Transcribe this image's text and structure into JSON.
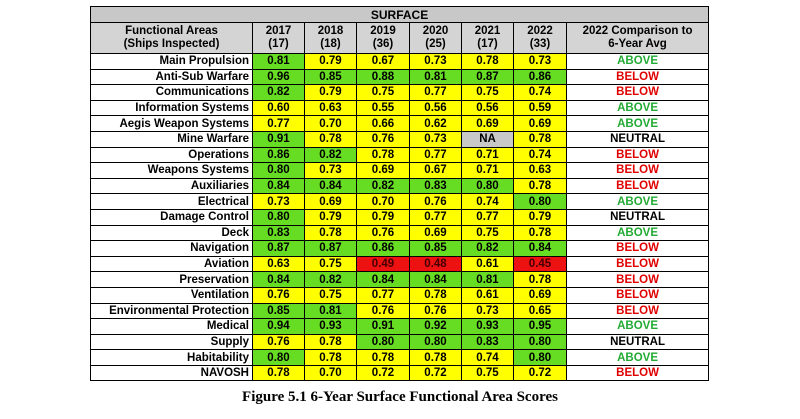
{
  "table": {
    "title": "SURFACE",
    "headers": [
      {
        "top": "Functional Areas",
        "bottom": "(Ships Inspected)"
      },
      {
        "top": "2017",
        "bottom": "(17)"
      },
      {
        "top": "2018",
        "bottom": "(18)"
      },
      {
        "top": "2019",
        "bottom": "(36)"
      },
      {
        "top": "2020",
        "bottom": "(25)"
      },
      {
        "top": "2021",
        "bottom": "(17)"
      },
      {
        "top": "2022",
        "bottom": "(33)"
      },
      {
        "top": "2022 Comparison to",
        "bottom": "6-Year Avg"
      }
    ],
    "rows": [
      {
        "area": "Main Propulsion",
        "values": [
          "0.81",
          "0.79",
          "0.67",
          "0.73",
          "0.78",
          "0.73"
        ],
        "fills": [
          "g",
          "y",
          "y",
          "y",
          "y",
          "y"
        ],
        "comparison": "ABOVE"
      },
      {
        "area": "Anti-Sub Warfare",
        "values": [
          "0.96",
          "0.85",
          "0.88",
          "0.81",
          "0.87",
          "0.86"
        ],
        "fills": [
          "g",
          "g",
          "g",
          "g",
          "g",
          "g"
        ],
        "comparison": "BELOW"
      },
      {
        "area": "Communications",
        "values": [
          "0.82",
          "0.79",
          "0.75",
          "0.77",
          "0.75",
          "0.74"
        ],
        "fills": [
          "g",
          "y",
          "y",
          "y",
          "y",
          "y"
        ],
        "comparison": "BELOW"
      },
      {
        "area": "Information Systems",
        "values": [
          "0.60",
          "0.63",
          "0.55",
          "0.56",
          "0.56",
          "0.59"
        ],
        "fills": [
          "y",
          "y",
          "y",
          "y",
          "y",
          "y"
        ],
        "comparison": "ABOVE"
      },
      {
        "area": "Aegis Weapon Systems",
        "values": [
          "0.77",
          "0.70",
          "0.66",
          "0.62",
          "0.69",
          "0.69"
        ],
        "fills": [
          "y",
          "y",
          "y",
          "y",
          "y",
          "y"
        ],
        "comparison": "ABOVE"
      },
      {
        "area": "Mine Warfare",
        "values": [
          "0.91",
          "0.78",
          "0.76",
          "0.73",
          "NA",
          "0.78"
        ],
        "fills": [
          "g",
          "y",
          "y",
          "y",
          "gr",
          "y"
        ],
        "comparison": "NEUTRAL"
      },
      {
        "area": "Operations",
        "values": [
          "0.86",
          "0.82",
          "0.78",
          "0.77",
          "0.71",
          "0.74"
        ],
        "fills": [
          "g",
          "g",
          "y",
          "y",
          "y",
          "y"
        ],
        "comparison": "BELOW"
      },
      {
        "area": "Weapons Systems",
        "values": [
          "0.80",
          "0.73",
          "0.69",
          "0.67",
          "0.71",
          "0.63"
        ],
        "fills": [
          "g",
          "y",
          "y",
          "y",
          "y",
          "y"
        ],
        "comparison": "BELOW"
      },
      {
        "area": "Auxiliaries",
        "values": [
          "0.84",
          "0.84",
          "0.82",
          "0.83",
          "0.80",
          "0.78"
        ],
        "fills": [
          "g",
          "g",
          "g",
          "g",
          "g",
          "y"
        ],
        "comparison": "BELOW"
      },
      {
        "area": "Electrical",
        "values": [
          "0.73",
          "0.69",
          "0.70",
          "0.76",
          "0.74",
          "0.80"
        ],
        "fills": [
          "y",
          "y",
          "y",
          "y",
          "y",
          "g"
        ],
        "comparison": "ABOVE"
      },
      {
        "area": "Damage Control",
        "values": [
          "0.80",
          "0.79",
          "0.79",
          "0.77",
          "0.77",
          "0.79"
        ],
        "fills": [
          "g",
          "y",
          "y",
          "y",
          "y",
          "y"
        ],
        "comparison": "NEUTRAL"
      },
      {
        "area": "Deck",
        "values": [
          "0.83",
          "0.78",
          "0.76",
          "0.69",
          "0.75",
          "0.78"
        ],
        "fills": [
          "g",
          "y",
          "y",
          "y",
          "y",
          "y"
        ],
        "comparison": "ABOVE"
      },
      {
        "area": "Navigation",
        "values": [
          "0.87",
          "0.87",
          "0.86",
          "0.85",
          "0.82",
          "0.84"
        ],
        "fills": [
          "g",
          "g",
          "g",
          "g",
          "g",
          "g"
        ],
        "comparison": "BELOW"
      },
      {
        "area": "Aviation",
        "values": [
          "0.63",
          "0.75",
          "0.49",
          "0.48",
          "0.61",
          "0.45"
        ],
        "fills": [
          "y",
          "y",
          "r",
          "r",
          "y",
          "r"
        ],
        "comparison": "BELOW"
      },
      {
        "area": "Preservation",
        "values": [
          "0.84",
          "0.82",
          "0.84",
          "0.84",
          "0.81",
          "0.78"
        ],
        "fills": [
          "g",
          "g",
          "g",
          "g",
          "g",
          "y"
        ],
        "comparison": "BELOW"
      },
      {
        "area": "Ventilation",
        "values": [
          "0.76",
          "0.75",
          "0.77",
          "0.78",
          "0.61",
          "0.69"
        ],
        "fills": [
          "y",
          "y",
          "y",
          "y",
          "y",
          "y"
        ],
        "comparison": "BELOW"
      },
      {
        "area": "Environmental Protection",
        "values": [
          "0.85",
          "0.81",
          "0.76",
          "0.76",
          "0.73",
          "0.65"
        ],
        "fills": [
          "g",
          "g",
          "y",
          "y",
          "y",
          "y"
        ],
        "comparison": "BELOW"
      },
      {
        "area": "Medical",
        "values": [
          "0.94",
          "0.93",
          "0.91",
          "0.92",
          "0.93",
          "0.95"
        ],
        "fills": [
          "g",
          "g",
          "g",
          "g",
          "g",
          "g"
        ],
        "comparison": "ABOVE"
      },
      {
        "area": "Supply",
        "values": [
          "0.76",
          "0.78",
          "0.80",
          "0.80",
          "0.83",
          "0.80"
        ],
        "fills": [
          "y",
          "y",
          "g",
          "g",
          "g",
          "g"
        ],
        "comparison": "NEUTRAL"
      },
      {
        "area": "Habitability",
        "values": [
          "0.80",
          "0.78",
          "0.78",
          "0.78",
          "0.74",
          "0.80"
        ],
        "fills": [
          "g",
          "y",
          "y",
          "y",
          "y",
          "g"
        ],
        "comparison": "ABOVE"
      },
      {
        "area": "NAVOSH",
        "values": [
          "0.78",
          "0.70",
          "0.72",
          "0.72",
          "0.75",
          "0.72"
        ],
        "fills": [
          "y",
          "y",
          "y",
          "y",
          "y",
          "y"
        ],
        "comparison": "BELOW"
      }
    ]
  },
  "caption": "Figure 5.1 6-Year Surface Functional Area Scores",
  "colors": {
    "green": "#66dd22",
    "yellow": "#ffff00",
    "red": "#ee1111",
    "gray": "#c8c8c8",
    "above": "#22aa33",
    "below": "#e00000"
  }
}
